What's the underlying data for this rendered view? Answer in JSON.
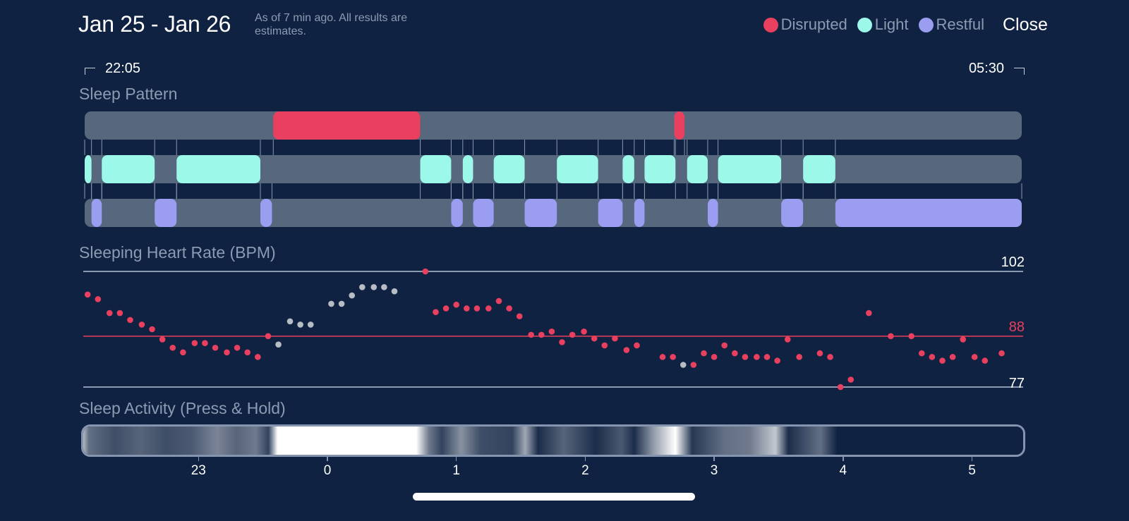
{
  "header": {
    "title": "Jan 25 - Jan 26",
    "subtitle": "As of 7 min ago. All results are estimates.",
    "close_label": "Close"
  },
  "legend": [
    {
      "label": "Disrupted",
      "color": "#e8405e"
    },
    {
      "label": "Light",
      "color": "#9cf9ea"
    },
    {
      "label": "Restful",
      "color": "#9a9df0"
    }
  ],
  "time_range": {
    "start": "22:05",
    "end": "05:30"
  },
  "sections": {
    "sleep_pattern": "Sleep Pattern",
    "heart_rate": "Sleeping Heart Rate (BPM)",
    "activity": "Sleep Activity (Press & Hold)"
  },
  "colors": {
    "background": "#0f2241",
    "track": "#56677e",
    "disrupted": "#e8405e",
    "light": "#9cf9ea",
    "restful": "#9a9df0",
    "hr_point": "#e8405e",
    "hr_point_gray": "#b8bcc4",
    "avg_line": "#e8405e",
    "ref_line": "#8c9bb4"
  },
  "chart_data": [
    {
      "type": "timeline",
      "title": "Sleep Pattern",
      "x_unit": "hours since midnight (negative = before midnight)",
      "x_range": [
        -1.917,
        5.5
      ],
      "series": [
        {
          "name": "Disrupted",
          "segments": [
            [
              -0.42,
              0.72
            ],
            [
              2.69,
              2.77
            ]
          ]
        },
        {
          "name": "Light",
          "segments": [
            [
              -1.917,
              -1.83
            ],
            [
              -1.75,
              -1.34
            ],
            [
              -1.17,
              -0.52
            ],
            [
              0.72,
              0.96
            ],
            [
              1.05,
              1.13
            ],
            [
              1.29,
              1.53
            ],
            [
              1.78,
              2.1
            ],
            [
              2.29,
              2.38
            ],
            [
              2.46,
              2.7
            ],
            [
              2.79,
              2.95
            ],
            [
              3.03,
              3.52
            ],
            [
              3.69,
              3.94
            ]
          ]
        },
        {
          "name": "Restful",
          "segments": [
            [
              -1.83,
              -1.75
            ],
            [
              -1.34,
              -1.17
            ],
            [
              -0.52,
              -0.43
            ],
            [
              0.96,
              1.05
            ],
            [
              1.13,
              1.29
            ],
            [
              1.53,
              1.78
            ],
            [
              2.1,
              2.29
            ],
            [
              2.38,
              2.46
            ],
            [
              2.95,
              3.03
            ],
            [
              3.52,
              3.69
            ],
            [
              3.94,
              5.5
            ]
          ]
        }
      ]
    },
    {
      "type": "scatter",
      "title": "Sleeping Heart Rate (BPM)",
      "ylim": [
        77,
        102
      ],
      "reference_lines": [
        {
          "value": 102,
          "label": "102",
          "kind": "max"
        },
        {
          "value": 88,
          "label": "88",
          "kind": "average"
        },
        {
          "value": 77,
          "label": "77",
          "kind": "min"
        }
      ],
      "points": [
        {
          "t": -1.86,
          "bpm": 97,
          "estimated": false
        },
        {
          "t": -1.78,
          "bpm": 96,
          "estimated": false
        },
        {
          "t": -1.69,
          "bpm": 93,
          "estimated": false
        },
        {
          "t": -1.61,
          "bpm": 93,
          "estimated": false
        },
        {
          "t": -1.53,
          "bpm": 91.5,
          "estimated": false
        },
        {
          "t": -1.44,
          "bpm": 90.5,
          "estimated": false
        },
        {
          "t": -1.36,
          "bpm": 89.5,
          "estimated": false
        },
        {
          "t": -1.28,
          "bpm": 87.3,
          "estimated": false
        },
        {
          "t": -1.2,
          "bpm": 85.5,
          "estimated": false
        },
        {
          "t": -1.12,
          "bpm": 84.5,
          "estimated": false
        },
        {
          "t": -1.03,
          "bpm": 86.5,
          "estimated": false
        },
        {
          "t": -0.95,
          "bpm": 86.5,
          "estimated": false
        },
        {
          "t": -0.87,
          "bpm": 85.5,
          "estimated": false
        },
        {
          "t": -0.78,
          "bpm": 84.5,
          "estimated": false
        },
        {
          "t": -0.7,
          "bpm": 85.5,
          "estimated": false
        },
        {
          "t": -0.62,
          "bpm": 84.5,
          "estimated": false
        },
        {
          "t": -0.54,
          "bpm": 83.5,
          "estimated": false
        },
        {
          "t": -0.46,
          "bpm": 88,
          "estimated": false
        },
        {
          "t": -0.38,
          "bpm": 86.2,
          "estimated": true
        },
        {
          "t": -0.29,
          "bpm": 91.2,
          "estimated": true
        },
        {
          "t": -0.21,
          "bpm": 90.5,
          "estimated": true
        },
        {
          "t": -0.13,
          "bpm": 90.5,
          "estimated": true
        },
        {
          "t": 0.03,
          "bpm": 95,
          "estimated": true
        },
        {
          "t": 0.11,
          "bpm": 95,
          "estimated": true
        },
        {
          "t": 0.19,
          "bpm": 96.8,
          "estimated": true
        },
        {
          "t": 0.27,
          "bpm": 98.6,
          "estimated": true
        },
        {
          "t": 0.36,
          "bpm": 98.6,
          "estimated": true
        },
        {
          "t": 0.44,
          "bpm": 98.6,
          "estimated": true
        },
        {
          "t": 0.52,
          "bpm": 97.7,
          "estimated": true
        },
        {
          "t": 0.76,
          "bpm": 102,
          "estimated": false
        },
        {
          "t": 0.84,
          "bpm": 93.2,
          "estimated": false
        },
        {
          "t": 0.92,
          "bpm": 94,
          "estimated": false
        },
        {
          "t": 1.0,
          "bpm": 94.8,
          "estimated": false
        },
        {
          "t": 1.08,
          "bpm": 94,
          "estimated": false
        },
        {
          "t": 1.16,
          "bpm": 94,
          "estimated": false
        },
        {
          "t": 1.25,
          "bpm": 94,
          "estimated": false
        },
        {
          "t": 1.33,
          "bpm": 95.6,
          "estimated": false
        },
        {
          "t": 1.41,
          "bpm": 94,
          "estimated": false
        },
        {
          "t": 1.49,
          "bpm": 92.3,
          "estimated": false
        },
        {
          "t": 1.58,
          "bpm": 88.3,
          "estimated": false
        },
        {
          "t": 1.66,
          "bpm": 88.3,
          "estimated": false
        },
        {
          "t": 1.74,
          "bpm": 89,
          "estimated": false
        },
        {
          "t": 1.82,
          "bpm": 86.7,
          "estimated": false
        },
        {
          "t": 1.9,
          "bpm": 88.3,
          "estimated": false
        },
        {
          "t": 1.99,
          "bpm": 89,
          "estimated": false
        },
        {
          "t": 2.07,
          "bpm": 87.5,
          "estimated": false
        },
        {
          "t": 2.15,
          "bpm": 86,
          "estimated": false
        },
        {
          "t": 2.23,
          "bpm": 87.5,
          "estimated": false
        },
        {
          "t": 2.32,
          "bpm": 85,
          "estimated": false
        },
        {
          "t": 2.4,
          "bpm": 86,
          "estimated": false
        },
        {
          "t": 2.6,
          "bpm": 83.5,
          "estimated": false
        },
        {
          "t": 2.68,
          "bpm": 83.5,
          "estimated": false
        },
        {
          "t": 2.76,
          "bpm": 81.8,
          "estimated": true
        },
        {
          "t": 2.84,
          "bpm": 81.8,
          "estimated": false
        },
        {
          "t": 2.92,
          "bpm": 84.3,
          "estimated": false
        },
        {
          "t": 3.0,
          "bpm": 83.5,
          "estimated": false
        },
        {
          "t": 3.08,
          "bpm": 86,
          "estimated": false
        },
        {
          "t": 3.16,
          "bpm": 84.3,
          "estimated": false
        },
        {
          "t": 3.24,
          "bpm": 83.5,
          "estimated": false
        },
        {
          "t": 3.33,
          "bpm": 83.5,
          "estimated": false
        },
        {
          "t": 3.41,
          "bpm": 83.5,
          "estimated": false
        },
        {
          "t": 3.49,
          "bpm": 82.7,
          "estimated": false
        },
        {
          "t": 3.57,
          "bpm": 87.3,
          "estimated": false
        },
        {
          "t": 3.66,
          "bpm": 83.5,
          "estimated": false
        },
        {
          "t": 3.82,
          "bpm": 84.3,
          "estimated": false
        },
        {
          "t": 3.9,
          "bpm": 83.5,
          "estimated": false
        },
        {
          "t": 3.98,
          "bpm": 77,
          "estimated": false
        },
        {
          "t": 4.06,
          "bpm": 78.6,
          "estimated": false
        },
        {
          "t": 4.2,
          "bpm": 93,
          "estimated": false
        },
        {
          "t": 4.37,
          "bpm": 88,
          "estimated": false
        },
        {
          "t": 4.53,
          "bpm": 88,
          "estimated": false
        },
        {
          "t": 4.61,
          "bpm": 84.3,
          "estimated": false
        },
        {
          "t": 4.69,
          "bpm": 83.5,
          "estimated": false
        },
        {
          "t": 4.77,
          "bpm": 82.7,
          "estimated": false
        },
        {
          "t": 4.85,
          "bpm": 83.5,
          "estimated": false
        },
        {
          "t": 4.93,
          "bpm": 87.3,
          "estimated": false
        },
        {
          "t": 5.02,
          "bpm": 83.5,
          "estimated": false
        },
        {
          "t": 5.1,
          "bpm": 82.7,
          "estimated": false
        },
        {
          "t": 5.23,
          "bpm": 84.3,
          "estimated": false
        }
      ]
    },
    {
      "type": "heatmap",
      "title": "Sleep Activity (Press & Hold)",
      "x_ticks": [
        "23",
        "0",
        "1",
        "2",
        "3",
        "4",
        "5"
      ],
      "x_tick_values": [
        -1,
        0,
        1,
        2,
        3,
        4,
        5
      ],
      "intensity": [
        {
          "t": -1.917,
          "v": 0.85
        },
        {
          "t": -1.85,
          "v": 0.35
        },
        {
          "t": -1.65,
          "v": 0.2
        },
        {
          "t": -1.45,
          "v": 0.3
        },
        {
          "t": -1.25,
          "v": 0.2
        },
        {
          "t": -1.05,
          "v": 0.25
        },
        {
          "t": -0.85,
          "v": 0.45
        },
        {
          "t": -0.7,
          "v": 0.3
        },
        {
          "t": -0.55,
          "v": 0.4
        },
        {
          "t": -0.45,
          "v": 0.15
        },
        {
          "t": -0.38,
          "v": 1.0
        },
        {
          "t": 0.7,
          "v": 1.0
        },
        {
          "t": 0.8,
          "v": 0.4
        },
        {
          "t": 0.9,
          "v": 0.15
        },
        {
          "t": 1.05,
          "v": 0.5
        },
        {
          "t": 1.2,
          "v": 0.2
        },
        {
          "t": 1.45,
          "v": 0.15
        },
        {
          "t": 1.55,
          "v": 0.6
        },
        {
          "t": 1.65,
          "v": 0.05
        },
        {
          "t": 1.85,
          "v": 0.3
        },
        {
          "t": 2.1,
          "v": 0.05
        },
        {
          "t": 2.3,
          "v": 0.25
        },
        {
          "t": 2.4,
          "v": 0.05
        },
        {
          "t": 2.55,
          "v": 0.55
        },
        {
          "t": 2.72,
          "v": 1.0
        },
        {
          "t": 2.85,
          "v": 0.1
        },
        {
          "t": 3.1,
          "v": 0.35
        },
        {
          "t": 3.3,
          "v": 0.4
        },
        {
          "t": 3.5,
          "v": 0.75
        },
        {
          "t": 3.6,
          "v": 0.05
        },
        {
          "t": 3.85,
          "v": 0.35
        },
        {
          "t": 3.98,
          "v": 0.0
        },
        {
          "t": 5.5,
          "v": 0.0
        }
      ]
    }
  ]
}
